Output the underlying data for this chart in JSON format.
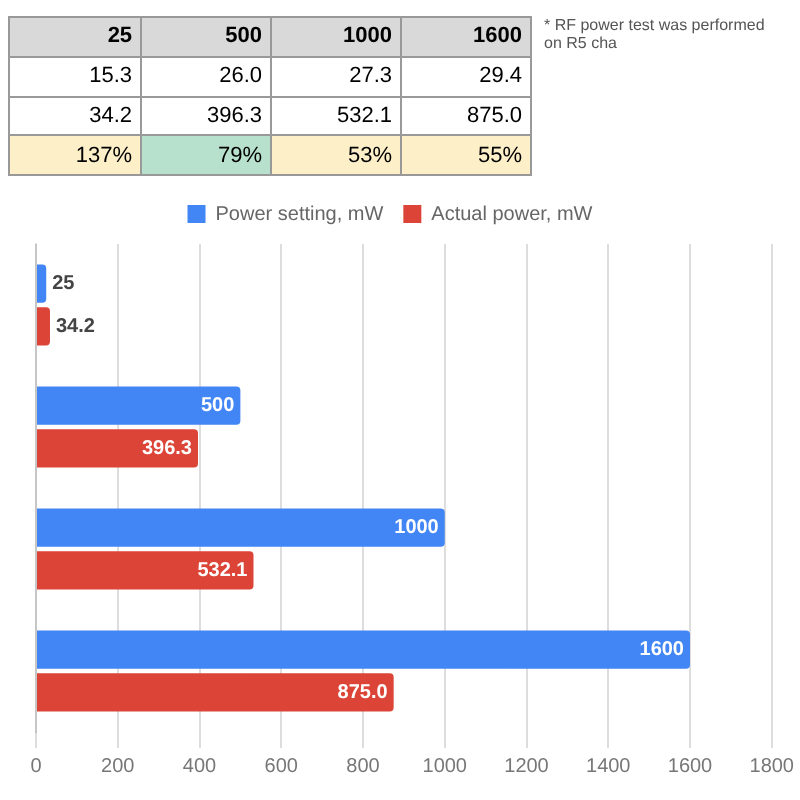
{
  "chart_data": [
    {
      "type": "other",
      "categories": [
        "25",
        "500",
        "1000",
        "1600"
      ],
      "series": [
        {
          "values": [
            15.3,
            26.0,
            27.3,
            29.4
          ],
          "value_labels": [
            "15.3",
            "26.0",
            "27.3",
            "29.4"
          ]
        },
        {
          "values": [
            34.2,
            396.3,
            532.1,
            875.0
          ],
          "value_labels": [
            "34.2",
            "396.3",
            "532.1",
            "875.0"
          ]
        },
        {
          "values": [
            137,
            79,
            53,
            55
          ],
          "value_labels": [
            "137%",
            "79%",
            "53%",
            "55%"
          ],
          "colors": [
            "#fdefc8",
            "#b7e1cd",
            "#fdefc8",
            "#fdefc8"
          ]
        }
      ],
      "annotations": [
        "* RF power test was performed on R5 cha"
      ]
    },
    {
      "type": "bar",
      "orientation": "horizontal",
      "categories": [
        null,
        null,
        null,
        null
      ],
      "series": [
        {
          "name": "Power setting, mW",
          "color": "#4285f4",
          "values": [
            25,
            500,
            1000,
            1600
          ],
          "value_labels": [
            "25",
            "500",
            "1000",
            "1600"
          ]
        },
        {
          "name": "Actual power, mW",
          "color": "#db4437",
          "values": [
            34.2,
            396.3,
            532.1,
            875.0
          ],
          "value_labels": [
            "34.2",
            "396.3",
            "532.1",
            "875.0"
          ]
        }
      ],
      "xlim": [
        0,
        1800
      ],
      "xticks": [
        0,
        200,
        400,
        600,
        800,
        1000,
        1200,
        1400,
        1600,
        1800
      ],
      "grid": "x",
      "legend": "top"
    }
  ]
}
